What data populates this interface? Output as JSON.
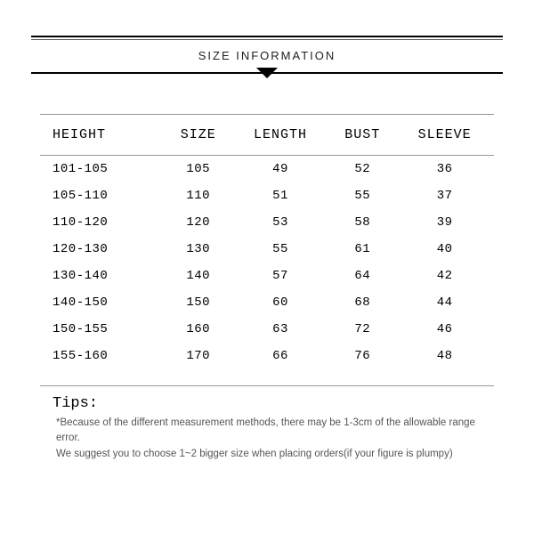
{
  "header": {
    "title": "SIZE INFORMATION"
  },
  "table": {
    "columns": [
      "HEIGHT",
      "SIZE",
      "LENGTH",
      "BUST",
      "SLEEVE"
    ],
    "rows": [
      [
        "101-105",
        "105",
        "49",
        "52",
        "36"
      ],
      [
        "105-110",
        "110",
        "51",
        "55",
        "37"
      ],
      [
        "110-120",
        "120",
        "53",
        "58",
        "39"
      ],
      [
        "120-130",
        "130",
        "55",
        "61",
        "40"
      ],
      [
        "130-140",
        "140",
        "57",
        "64",
        "42"
      ],
      [
        "140-150",
        "150",
        "60",
        "68",
        "44"
      ],
      [
        "150-155",
        "160",
        "63",
        "72",
        "46"
      ],
      [
        "155-160",
        "170",
        "66",
        "76",
        "48"
      ]
    ],
    "column_align": [
      "left",
      "center",
      "center",
      "center",
      "center"
    ],
    "header_fontsize": 15,
    "cell_fontsize": 14,
    "border_color": "#999999",
    "text_color": "#000000",
    "font_family": "Courier New"
  },
  "tips": {
    "title": "Tips:",
    "lines": [
      "*Because of the different measurement methods, there may be 1-3cm of the allowable range error.",
      "We suggest you to choose 1~2 bigger size when placing orders(if your figure is plumpy)"
    ],
    "title_fontsize": 17,
    "text_fontsize": 11.5,
    "text_color": "#555555"
  },
  "styling": {
    "background_color": "#ffffff",
    "rule_thick_color": "#000000",
    "rule_thin_color": "#555555",
    "triangle_color": "#000000"
  }
}
